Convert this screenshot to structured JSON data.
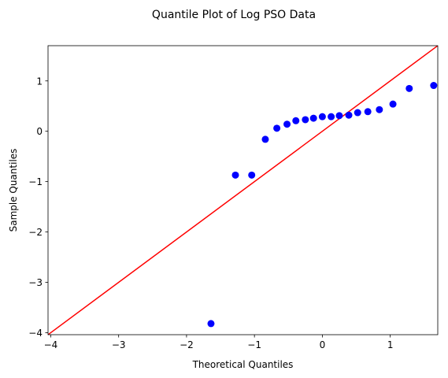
{
  "chart_data": {
    "type": "scatter",
    "title": "Quantile Plot of Log PSO Data",
    "xlabel": "Theoretical Quantiles",
    "ylabel": "Sample Quantiles",
    "xlim": [
      -4.04,
      1.7
    ],
    "ylim": [
      -4.04,
      1.7
    ],
    "xticks": [
      {
        "value": -4,
        "label": "−4"
      },
      {
        "value": -3,
        "label": "−3"
      },
      {
        "value": -2,
        "label": "−2"
      },
      {
        "value": -1,
        "label": "−1"
      },
      {
        "value": 0,
        "label": "0"
      },
      {
        "value": 1,
        "label": "1"
      }
    ],
    "yticks": [
      {
        "value": -4,
        "label": "−4"
      },
      {
        "value": -3,
        "label": "−3"
      },
      {
        "value": -2,
        "label": "−2"
      },
      {
        "value": -1,
        "label": "−1"
      },
      {
        "value": 0,
        "label": "0"
      },
      {
        "value": 1,
        "label": "1"
      }
    ],
    "grid": false,
    "series": [
      {
        "name": "sample quantiles",
        "marker": "circle",
        "color": "#0000ff",
        "points": [
          {
            "x": -1.64,
            "y": -3.82
          },
          {
            "x": -1.28,
            "y": -0.87
          },
          {
            "x": -1.04,
            "y": -0.87
          },
          {
            "x": -0.84,
            "y": -0.16
          },
          {
            "x": -0.67,
            "y": 0.06
          },
          {
            "x": -0.52,
            "y": 0.14
          },
          {
            "x": -0.39,
            "y": 0.21
          },
          {
            "x": -0.25,
            "y": 0.23
          },
          {
            "x": -0.13,
            "y": 0.26
          },
          {
            "x": 0.0,
            "y": 0.29
          },
          {
            "x": 0.13,
            "y": 0.29
          },
          {
            "x": 0.25,
            "y": 0.31
          },
          {
            "x": 0.39,
            "y": 0.32
          },
          {
            "x": 0.52,
            "y": 0.37
          },
          {
            "x": 0.67,
            "y": 0.39
          },
          {
            "x": 0.84,
            "y": 0.43
          },
          {
            "x": 1.04,
            "y": 0.54
          },
          {
            "x": 1.28,
            "y": 0.85
          },
          {
            "x": 1.64,
            "y": 0.91
          }
        ]
      }
    ],
    "reference_line": {
      "name": "45-degree reference line",
      "color": "#ff0000",
      "from": [
        -4.04,
        -4.04
      ],
      "to": [
        1.7,
        1.7
      ]
    }
  }
}
